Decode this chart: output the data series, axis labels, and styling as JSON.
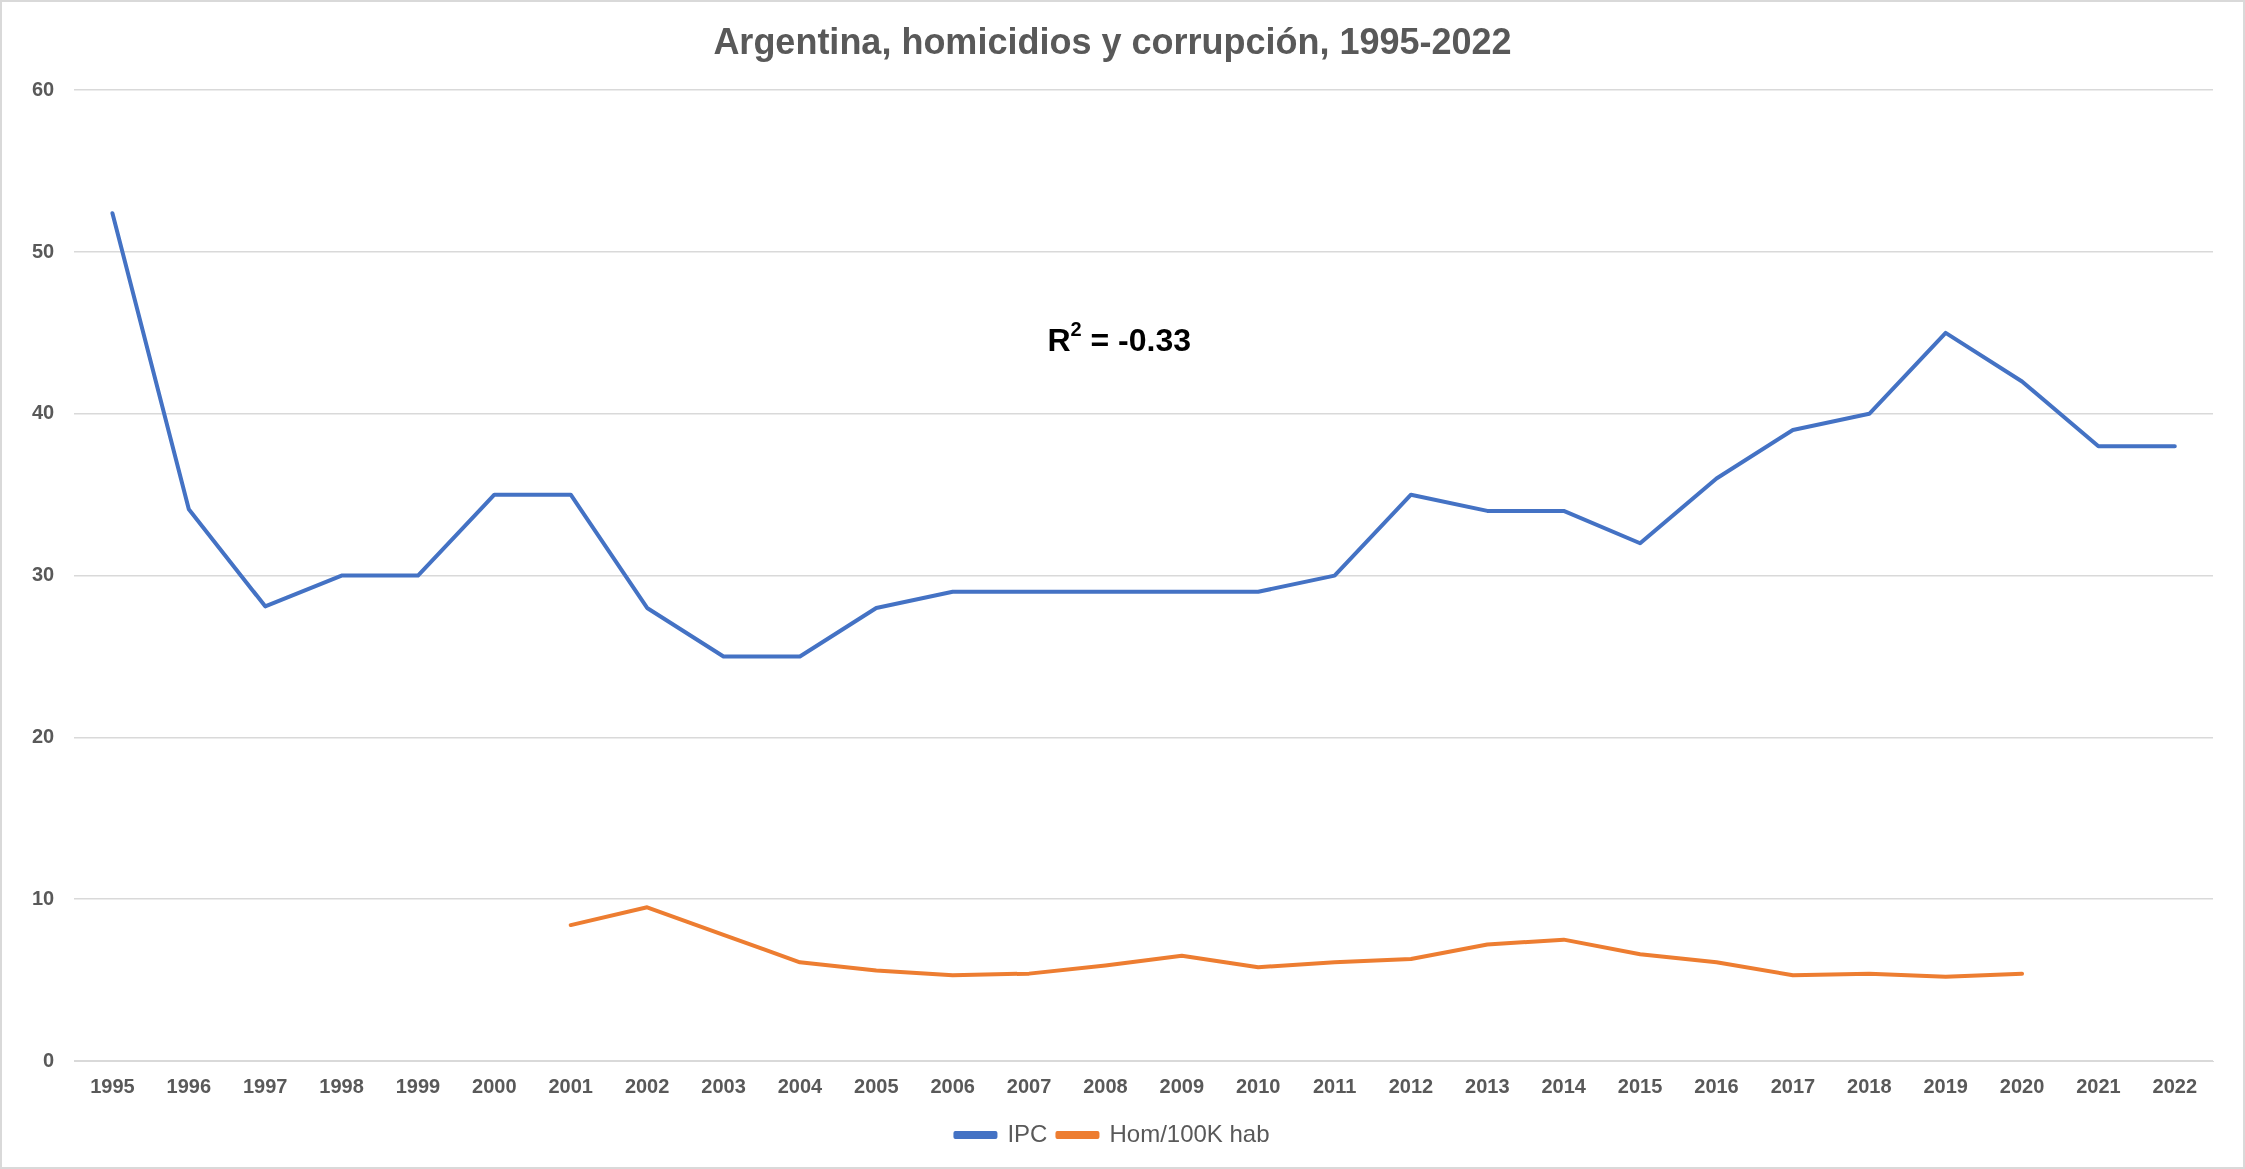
{
  "chart_data": {
    "type": "line",
    "title": "Argentina, homicidios y corrupción, 1995-2022",
    "categories": [
      "1995",
      "1996",
      "1997",
      "1998",
      "1999",
      "2000",
      "2001",
      "2002",
      "2003",
      "2004",
      "2005",
      "2006",
      "2007",
      "2008",
      "2009",
      "2010",
      "2011",
      "2012",
      "2013",
      "2014",
      "2015",
      "2016",
      "2017",
      "2018",
      "2019",
      "2020",
      "2021",
      "2022"
    ],
    "series": [
      {
        "name": "IPC",
        "color": "#4472c4",
        "values": [
          52.4,
          34.1,
          28.1,
          30,
          30,
          35,
          35,
          28,
          25,
          25,
          28,
          29,
          29,
          29,
          29,
          29,
          30,
          35,
          34,
          34,
          32,
          36,
          39,
          40,
          45,
          42,
          38,
          38
        ]
      },
      {
        "name": "Hom/100K hab",
        "color": "#ed7d31",
        "values": [
          null,
          null,
          null,
          null,
          null,
          null,
          8.4,
          9.5,
          7.8,
          6.1,
          5.6,
          5.3,
          5.4,
          5.9,
          6.5,
          5.8,
          6.1,
          6.3,
          7.2,
          7.5,
          6.6,
          6.1,
          5.3,
          5.4,
          5.2,
          5.4,
          null,
          null
        ]
      }
    ],
    "ylim": [
      0,
      60
    ],
    "yticks": [
      0,
      10,
      20,
      30,
      40,
      50,
      60
    ],
    "grid": "y",
    "legend": "bottom",
    "marker": "none",
    "line_style": "solid",
    "annotations": [
      "R$^{2}$ = -0.33"
    ]
  }
}
